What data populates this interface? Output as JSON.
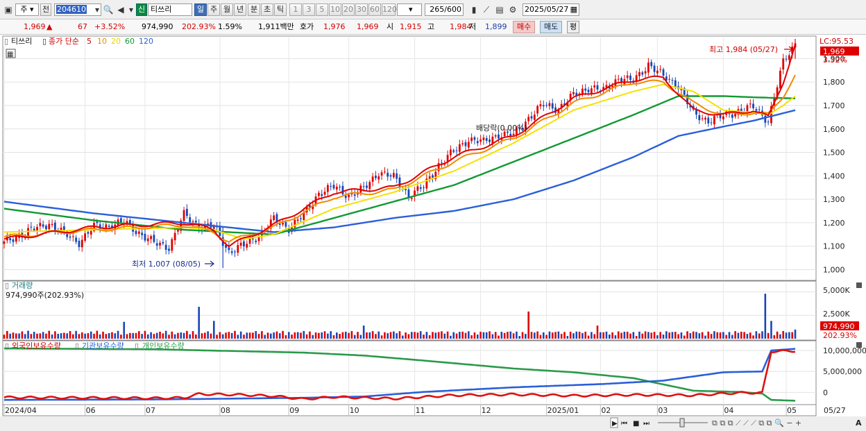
{
  "toolbar": {
    "period_type": "주",
    "prefix": "전",
    "code": "204610",
    "badge": "신",
    "name": "티쓰리",
    "periods": [
      "일",
      "주",
      "월",
      "년",
      "분",
      "초",
      "틱"
    ],
    "selected_period": "일",
    "intervals": [
      "1",
      "3",
      "5",
      "10",
      "20",
      "30",
      "60",
      "120"
    ],
    "count": "265",
    "count_total": "/600",
    "date": "2025/05/27"
  },
  "quote": {
    "price": "1,969",
    "arrow": "▲",
    "change": "67",
    "change_pct": "+3.52%",
    "volume": "974,990",
    "volume_ratio": "202.93%",
    "turnover": "1.59%",
    "amount": "1,911백만",
    "bid_label": "호가",
    "bid1": "1,976",
    "bid2": "1,969",
    "open_label": "시",
    "open": "1,915",
    "high_label": "고",
    "high": "1,984",
    "low_label": "저",
    "low": "1,899",
    "buy_label": "매수",
    "sell_label": "매도",
    "flat_label": "평"
  },
  "price_panel": {
    "stock_label": "티쓰리",
    "ma_title": "종가 단순",
    "ma_periods": [
      "5",
      "10",
      "20",
      "60",
      "120"
    ],
    "lc_label": "LC:95.53",
    "last_price_tag": "1,969",
    "last_pct_tag": "3.52%",
    "high_annotation": "최고 1,984 (05/27)",
    "low_annotation": "최저 1,007 (08/05)",
    "dividend_annotation": "배당락(0.00%)"
  },
  "volume_panel": {
    "title": "거래량",
    "value_text": "974,990주(202.93%)",
    "last_tag": "974,990",
    "last_pct_tag": "202.93%"
  },
  "holding_panel": {
    "titles": [
      "외국인보유수량",
      "기관보유수량",
      "개인보유수량"
    ]
  },
  "xaxis": {
    "labels": [
      "2024/04",
      "06",
      "07",
      "08",
      "09",
      "10",
      "11",
      "12",
      "2025/01",
      "02",
      "03",
      "04",
      "05",
      "05/27"
    ]
  },
  "colors": {
    "ma5": "#e00000",
    "ma10": "#f08a00",
    "ma20": "#f6e000",
    "ma60": "#119933",
    "ma120": "#2a5fd8",
    "up": "#e00000",
    "down": "#1846b8",
    "foreign": "#dd1111",
    "institution": "#2a5fd8",
    "individual": "#2a9a4a"
  },
  "chart_data": [
    {
      "type": "candlestick",
      "title": "티쓰리",
      "y_ticks": [
        1000,
        1100,
        1200,
        1300,
        1400,
        1500,
        1600,
        1700,
        1800,
        1900
      ],
      "ylim": [
        960,
        1990
      ],
      "x_months": [
        "2024/04",
        "06",
        "07",
        "08",
        "09",
        "10",
        "11",
        "12",
        "2025/01",
        "02",
        "03",
        "04",
        "05"
      ],
      "series": [
        {
          "name": "close",
          "x": [
            0,
            5,
            10,
            15,
            20,
            25,
            30,
            35,
            40,
            45,
            50,
            55,
            60,
            65,
            70,
            75,
            80,
            85,
            90,
            95,
            100,
            105,
            110,
            115,
            120,
            125,
            130,
            135,
            140,
            145,
            150,
            155,
            160,
            165,
            170,
            175,
            180,
            185,
            190,
            195,
            200,
            205,
            210,
            215,
            220,
            225,
            230,
            235,
            240,
            245,
            250,
            255,
            260,
            264
          ],
          "values": [
            1110,
            1150,
            1170,
            1200,
            1150,
            1120,
            1180,
            1190,
            1200,
            1160,
            1110,
            1100,
            1230,
            1190,
            1180,
            1080,
            1100,
            1150,
            1210,
            1180,
            1230,
            1330,
            1350,
            1320,
            1340,
            1420,
            1390,
            1320,
            1350,
            1450,
            1500,
            1560,
            1540,
            1580,
            1570,
            1650,
            1700,
            1690,
            1740,
            1780,
            1760,
            1820,
            1800,
            1880,
            1820,
            1790,
            1660,
            1640,
            1650,
            1680,
            1690,
            1640,
            1880,
            1969
          ]
        },
        {
          "name": "5",
          "x": [
            0,
            30,
            60,
            70,
            75,
            90,
            110,
            130,
            150,
            170,
            190,
            210,
            220,
            230,
            240,
            250,
            255,
            260,
            264
          ],
          "values": [
            1130,
            1180,
            1200,
            1170,
            1100,
            1190,
            1330,
            1350,
            1480,
            1570,
            1730,
            1810,
            1820,
            1680,
            1660,
            1680,
            1650,
            1800,
            1960
          ]
        },
        {
          "name": "10",
          "x": [
            0,
            30,
            60,
            70,
            75,
            90,
            110,
            130,
            150,
            170,
            190,
            210,
            220,
            230,
            240,
            250,
            255,
            260,
            264
          ],
          "values": [
            1140,
            1170,
            1190,
            1160,
            1120,
            1180,
            1310,
            1340,
            1460,
            1560,
            1710,
            1800,
            1800,
            1710,
            1660,
            1670,
            1660,
            1740,
            1830
          ]
        },
        {
          "name": "20",
          "x": [
            0,
            30,
            60,
            70,
            80,
            90,
            110,
            130,
            150,
            170,
            190,
            210,
            220,
            230,
            240,
            250,
            255,
            260,
            264
          ],
          "values": [
            1160,
            1170,
            1180,
            1170,
            1130,
            1150,
            1260,
            1330,
            1420,
            1540,
            1680,
            1760,
            1790,
            1760,
            1680,
            1670,
            1660,
            1700,
            1740
          ]
        },
        {
          "name": "60",
          "x": [
            0,
            30,
            60,
            90,
            110,
            130,
            150,
            170,
            190,
            210,
            225,
            240,
            250,
            264
          ],
          "values": [
            1260,
            1210,
            1170,
            1150,
            1220,
            1290,
            1360,
            1460,
            1560,
            1660,
            1740,
            1740,
            1735,
            1730
          ]
        },
        {
          "name": "120",
          "x": [
            0,
            30,
            60,
            90,
            110,
            130,
            150,
            170,
            190,
            210,
            225,
            240,
            250,
            264
          ],
          "values": [
            1290,
            1240,
            1200,
            1160,
            1180,
            1220,
            1250,
            1300,
            1380,
            1480,
            1570,
            1610,
            1635,
            1680
          ]
        }
      ]
    },
    {
      "type": "bar",
      "title": "거래량",
      "y_ticks_labels": [
        "5,000K",
        "2,500K"
      ],
      "ylim": [
        0,
        6000000
      ],
      "spikes": [
        {
          "x": 40,
          "value": 1800000
        },
        {
          "x": 65,
          "value": 3400000
        },
        {
          "x": 70,
          "value": 1900000
        },
        {
          "x": 120,
          "value": 1400000
        },
        {
          "x": 175,
          "value": 2900000
        },
        {
          "x": 198,
          "value": 1400000
        },
        {
          "x": 254,
          "value": 4800000
        },
        {
          "x": 256,
          "value": 1900000
        },
        {
          "x": 264,
          "value": 974990
        }
      ]
    },
    {
      "type": "line",
      "title": "보유수량",
      "y_ticks": [
        10000000,
        5000000,
        0
      ],
      "series": [
        {
          "name": "외국인보유수량",
          "x": [
            0,
            50,
            60,
            65,
            80,
            90,
            100,
            110,
            130,
            150,
            170,
            190,
            210,
            230,
            245,
            253,
            256,
            264
          ],
          "values": [
            -1200000,
            -1400000,
            -1300000,
            -400000,
            -600000,
            -900000,
            -1600000,
            -1100000,
            -1500000,
            -700000,
            -500000,
            -800000,
            -600000,
            -700000,
            -100000,
            -100000,
            9800000,
            9900000
          ]
        },
        {
          "name": "기관보유수량",
          "x": [
            0,
            50,
            100,
            120,
            140,
            170,
            200,
            220,
            240,
            253,
            256,
            264
          ],
          "values": [
            -1800000,
            -1700000,
            -1300000,
            -1000000,
            100000,
            1200000,
            2000000,
            2800000,
            4800000,
            5000000,
            10000000,
            10400000
          ]
        },
        {
          "name": "개인보유수량",
          "x": [
            0,
            50,
            100,
            120,
            140,
            170,
            190,
            210,
            230,
            245,
            253,
            256,
            264
          ],
          "values": [
            10500000,
            10300000,
            9500000,
            8800000,
            7600000,
            5700000,
            4800000,
            3400000,
            400000,
            100000,
            -300000,
            -1800000,
            -2000000
          ]
        }
      ]
    }
  ]
}
